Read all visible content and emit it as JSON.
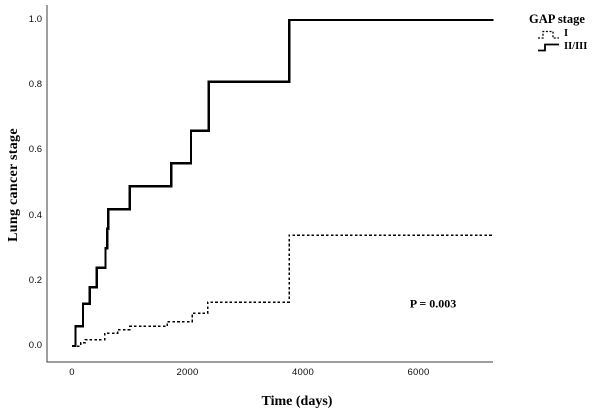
{
  "chart_data": {
    "type": "line",
    "subtype": "step-cumulative",
    "title": "",
    "xlabel": "Time (days)",
    "ylabel": "Lung cancer stage",
    "xlim": [
      0,
      7300
    ],
    "ylim": [
      0.0,
      1.0
    ],
    "grid": false,
    "legend_position": "top-right",
    "legend": {
      "title": "GAP stage",
      "entries": [
        {
          "label": "I",
          "style": "dotted"
        },
        {
          "label": "II/III",
          "style": "solid"
        }
      ]
    },
    "x_ticks": [
      {
        "label": "0",
        "value": 0
      },
      {
        "label": "2000",
        "value": 2000
      },
      {
        "label": "4000",
        "value": 4000
      },
      {
        "label": "6000",
        "value": 6000
      }
    ],
    "y_ticks": [
      {
        "label": "1.0",
        "value": 1.0
      },
      {
        "label": "0.8",
        "value": 0.8
      },
      {
        "label": "0.6",
        "value": 0.6
      },
      {
        "label": "0.4",
        "value": 0.4
      },
      {
        "label": "0.2",
        "value": 0.2
      },
      {
        "label": "0.0",
        "value": 0.0
      }
    ],
    "annotations": [
      {
        "text": "P = 0.003",
        "x": 6250,
        "y": 0.13
      }
    ],
    "series": [
      {
        "name": "I",
        "line": "dotted",
        "points": [
          [
            0,
            0.0
          ],
          [
            150,
            0.01
          ],
          [
            230,
            0.02
          ],
          [
            570,
            0.04
          ],
          [
            790,
            0.05
          ],
          [
            1000,
            0.06
          ],
          [
            1650,
            0.075
          ],
          [
            2080,
            0.1
          ],
          [
            2350,
            0.135
          ],
          [
            3760,
            0.34
          ],
          [
            7300,
            0.34
          ]
        ]
      },
      {
        "name": "II/III",
        "line": "solid",
        "points": [
          [
            0,
            0.0
          ],
          [
            60,
            0.06
          ],
          [
            190,
            0.13
          ],
          [
            310,
            0.18
          ],
          [
            430,
            0.24
          ],
          [
            580,
            0.3
          ],
          [
            610,
            0.36
          ],
          [
            630,
            0.42
          ],
          [
            1000,
            0.49
          ],
          [
            1720,
            0.56
          ],
          [
            2060,
            0.66
          ],
          [
            2370,
            0.81
          ],
          [
            3760,
            1.0
          ],
          [
            7300,
            1.0
          ]
        ]
      }
    ]
  }
}
